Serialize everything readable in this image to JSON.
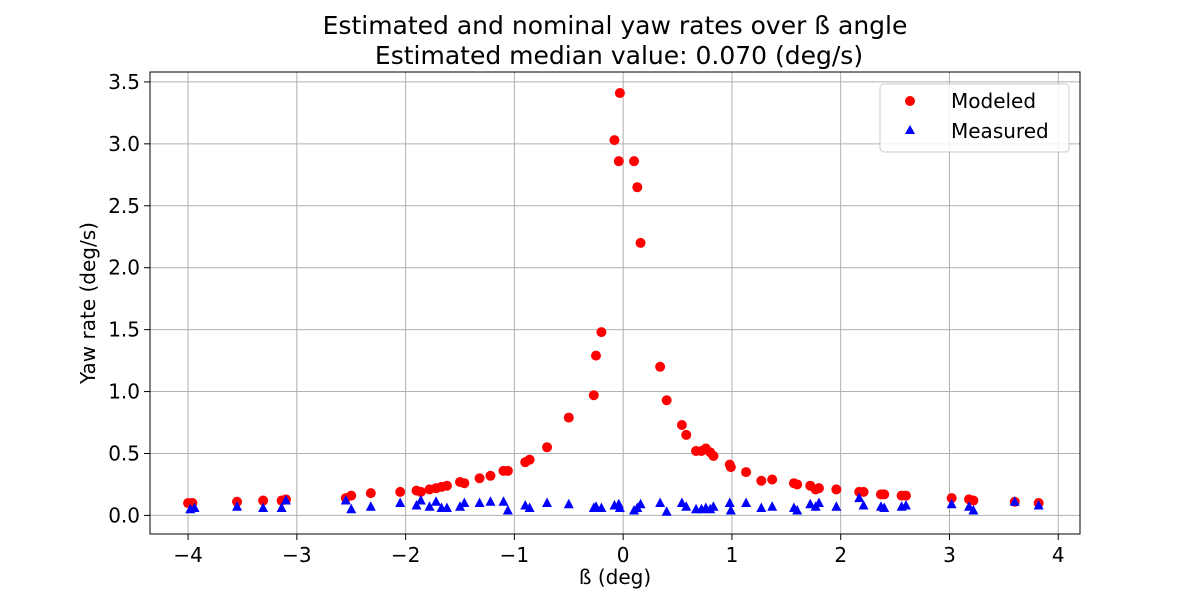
{
  "chart_data": {
    "type": "scatter",
    "title": "Estimated and nominal yaw rates over ß angle",
    "subtitle": "Estimated median value: 0.070 (deg/s)",
    "xlabel": "ß (deg)",
    "ylabel": "Yaw rate (deg/s)",
    "xlim": [
      -4.35,
      4.2
    ],
    "ylim": [
      -0.15,
      3.58
    ],
    "xticks": [
      -4,
      -3,
      -2,
      -1,
      0,
      1,
      2,
      3,
      4
    ],
    "xtick_labels": [
      "−4",
      "−3",
      "−2",
      "−1",
      "0",
      "1",
      "2",
      "3",
      "4"
    ],
    "yticks": [
      0.0,
      0.5,
      1.0,
      1.5,
      2.0,
      2.5,
      3.0,
      3.5
    ],
    "ytick_labels": [
      "0.0",
      "0.5",
      "1.0",
      "1.5",
      "2.0",
      "2.5",
      "3.0",
      "3.5"
    ],
    "grid": true,
    "legend_position": "top-right",
    "series": [
      {
        "name": "Modeled",
        "marker": "circle",
        "color": "#ff0000",
        "points": [
          [
            -4.0,
            0.1
          ],
          [
            -3.96,
            0.1
          ],
          [
            -3.55,
            0.11
          ],
          [
            -3.31,
            0.12
          ],
          [
            -3.14,
            0.12
          ],
          [
            -3.1,
            0.13
          ],
          [
            -2.55,
            0.14
          ],
          [
            -2.5,
            0.16
          ],
          [
            -2.32,
            0.18
          ],
          [
            -2.05,
            0.19
          ],
          [
            -1.9,
            0.2
          ],
          [
            -1.86,
            0.19
          ],
          [
            -1.78,
            0.21
          ],
          [
            -1.72,
            0.22
          ],
          [
            -1.67,
            0.23
          ],
          [
            -1.62,
            0.24
          ],
          [
            -1.5,
            0.27
          ],
          [
            -1.46,
            0.26
          ],
          [
            -1.32,
            0.3
          ],
          [
            -1.22,
            0.32
          ],
          [
            -1.1,
            0.36
          ],
          [
            -1.06,
            0.36
          ],
          [
            -0.9,
            0.43
          ],
          [
            -0.86,
            0.45
          ],
          [
            -0.7,
            0.55
          ],
          [
            -0.5,
            0.79
          ],
          [
            -0.27,
            0.97
          ],
          [
            -0.25,
            1.29
          ],
          [
            -0.2,
            1.48
          ],
          [
            -0.08,
            3.03
          ],
          [
            -0.04,
            2.86
          ],
          [
            -0.03,
            3.41
          ],
          [
            0.1,
            2.86
          ],
          [
            0.13,
            2.65
          ],
          [
            0.16,
            2.2
          ],
          [
            0.34,
            1.2
          ],
          [
            0.4,
            0.93
          ],
          [
            0.54,
            0.73
          ],
          [
            0.58,
            0.65
          ],
          [
            0.67,
            0.52
          ],
          [
            0.72,
            0.52
          ],
          [
            0.76,
            0.54
          ],
          [
            0.8,
            0.51
          ],
          [
            0.83,
            0.48
          ],
          [
            0.98,
            0.41
          ],
          [
            0.99,
            0.39
          ],
          [
            1.13,
            0.35
          ],
          [
            1.27,
            0.28
          ],
          [
            1.37,
            0.29
          ],
          [
            1.57,
            0.26
          ],
          [
            1.6,
            0.25
          ],
          [
            1.72,
            0.24
          ],
          [
            1.77,
            0.21
          ],
          [
            1.8,
            0.22
          ],
          [
            1.96,
            0.21
          ],
          [
            2.17,
            0.19
          ],
          [
            2.21,
            0.19
          ],
          [
            2.37,
            0.17
          ],
          [
            2.4,
            0.17
          ],
          [
            2.56,
            0.16
          ],
          [
            2.6,
            0.16
          ],
          [
            3.02,
            0.14
          ],
          [
            3.18,
            0.13
          ],
          [
            3.22,
            0.12
          ],
          [
            3.6,
            0.11
          ],
          [
            3.82,
            0.1
          ]
        ]
      },
      {
        "name": "Measured",
        "marker": "triangle",
        "color": "#0000ff",
        "points": [
          [
            -3.98,
            0.05
          ],
          [
            -3.94,
            0.06
          ],
          [
            -3.55,
            0.07
          ],
          [
            -3.31,
            0.06
          ],
          [
            -3.14,
            0.06
          ],
          [
            -3.1,
            0.12
          ],
          [
            -2.55,
            0.12
          ],
          [
            -2.5,
            0.05
          ],
          [
            -2.32,
            0.07
          ],
          [
            -2.05,
            0.1
          ],
          [
            -1.9,
            0.08
          ],
          [
            -1.86,
            0.12
          ],
          [
            -1.78,
            0.07
          ],
          [
            -1.72,
            0.11
          ],
          [
            -1.67,
            0.06
          ],
          [
            -1.62,
            0.06
          ],
          [
            -1.5,
            0.07
          ],
          [
            -1.46,
            0.1
          ],
          [
            -1.32,
            0.1
          ],
          [
            -1.22,
            0.11
          ],
          [
            -1.1,
            0.11
          ],
          [
            -1.06,
            0.04
          ],
          [
            -0.9,
            0.08
          ],
          [
            -0.86,
            0.06
          ],
          [
            -0.7,
            0.1
          ],
          [
            -0.5,
            0.09
          ],
          [
            -0.27,
            0.06
          ],
          [
            -0.25,
            0.07
          ],
          [
            -0.2,
            0.06
          ],
          [
            -0.08,
            0.08
          ],
          [
            -0.04,
            0.09
          ],
          [
            -0.03,
            0.06
          ],
          [
            0.1,
            0.04
          ],
          [
            0.13,
            0.06
          ],
          [
            0.16,
            0.09
          ],
          [
            0.34,
            0.1
          ],
          [
            0.4,
            0.03
          ],
          [
            0.54,
            0.1
          ],
          [
            0.58,
            0.07
          ],
          [
            0.67,
            0.05
          ],
          [
            0.72,
            0.05
          ],
          [
            0.76,
            0.06
          ],
          [
            0.8,
            0.05
          ],
          [
            0.83,
            0.07
          ],
          [
            0.98,
            0.1
          ],
          [
            0.99,
            0.04
          ],
          [
            1.13,
            0.1
          ],
          [
            1.27,
            0.06
          ],
          [
            1.37,
            0.07
          ],
          [
            1.57,
            0.06
          ],
          [
            1.6,
            0.04
          ],
          [
            1.72,
            0.09
          ],
          [
            1.77,
            0.07
          ],
          [
            1.8,
            0.1
          ],
          [
            1.96,
            0.07
          ],
          [
            2.17,
            0.14
          ],
          [
            2.21,
            0.08
          ],
          [
            2.37,
            0.07
          ],
          [
            2.4,
            0.06
          ],
          [
            2.56,
            0.07
          ],
          [
            2.6,
            0.08
          ],
          [
            3.02,
            0.09
          ],
          [
            3.18,
            0.07
          ],
          [
            3.22,
            0.04
          ],
          [
            3.6,
            0.11
          ],
          [
            3.82,
            0.08
          ]
        ]
      }
    ]
  }
}
